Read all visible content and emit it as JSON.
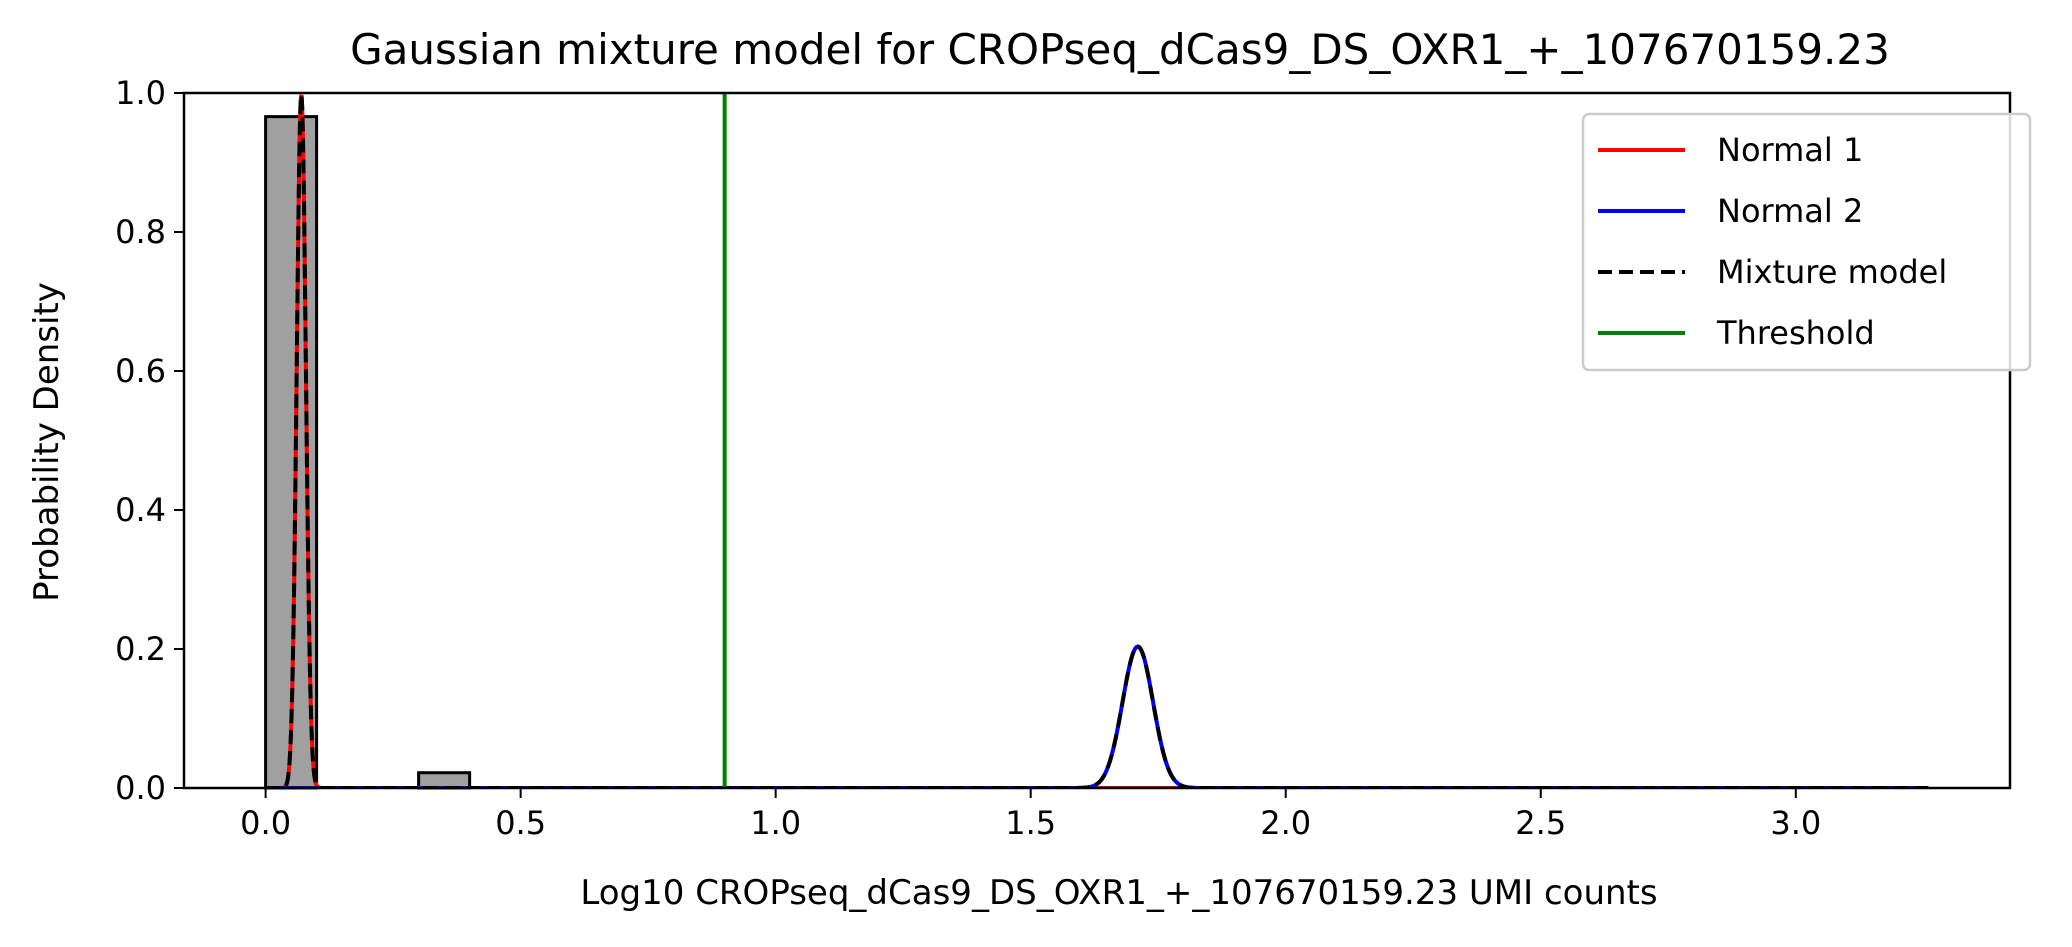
{
  "chart_data": {
    "type": "histogram",
    "title": "Gaussian mixture model for CROPseq_dCas9_DS_OXR1_+_107670159.23",
    "xlabel": "Log10 CROPseq_dCas9_DS_OXR1_+_107670159.23 UMI counts",
    "ylabel": "Probability Density",
    "xlim": [
      -0.16,
      3.42
    ],
    "ylim": [
      0.0,
      1.0
    ],
    "x_ticks": [
      0.0,
      0.5,
      1.0,
      1.5,
      2.0,
      2.5,
      3.0
    ],
    "x_tick_labels": [
      "0.0",
      "0.5",
      "1.0",
      "1.5",
      "2.0",
      "2.5",
      "3.0"
    ],
    "y_ticks": [
      0.0,
      0.2,
      0.4,
      0.6,
      0.8,
      1.0
    ],
    "y_tick_labels": [
      "0.0",
      "0.2",
      "0.4",
      "0.6",
      "0.8",
      "1.0"
    ],
    "histogram": {
      "color": "#a0a0a0",
      "edgecolor": "#000000",
      "bins": [
        {
          "x0": 0.0,
          "x1": 0.1,
          "density": 0.966
        },
        {
          "x0": 0.3,
          "x1": 0.4,
          "density": 0.022
        }
      ]
    },
    "components": [
      {
        "name": "Normal 1",
        "mean": 0.07,
        "sd": 0.009,
        "weight": 0.0225,
        "color": "#ff0000"
      },
      {
        "name": "Normal 2",
        "mean": 1.71,
        "sd": 0.03,
        "weight": 0.0153,
        "color": "#0000ff"
      }
    ],
    "curve_range": [
      0.0,
      3.26
    ],
    "mixture": {
      "name": "Mixture model",
      "color": "#000000",
      "style": "dashed"
    },
    "threshold": {
      "name": "Threshold",
      "x": 0.9,
      "color": "#008000"
    },
    "legend": {
      "position": "top-right",
      "entries": [
        {
          "label": "Normal 1",
          "color": "#ff0000",
          "style": "solid"
        },
        {
          "label": "Normal 2",
          "color": "#0000ff",
          "style": "solid"
        },
        {
          "label": "Mixture model",
          "color": "#000000",
          "style": "dashed"
        },
        {
          "label": "Threshold",
          "color": "#008000",
          "style": "solid"
        }
      ]
    }
  }
}
